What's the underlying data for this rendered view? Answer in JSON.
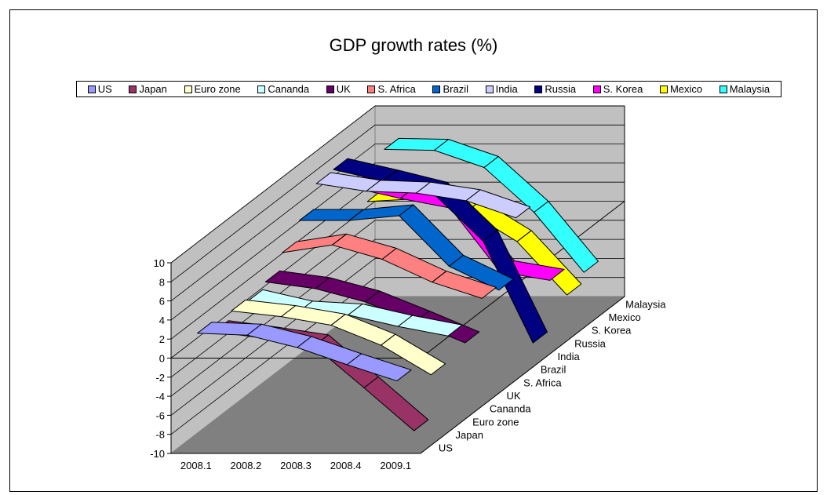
{
  "chart_data": {
    "type": "line",
    "subtype": "3d-line",
    "title": "GDP growth rates (%)",
    "categories": [
      "2008.1",
      "2008.2",
      "2008.3",
      "2008.4",
      "2009.1"
    ],
    "y_ticks": [
      "10",
      "8",
      "6",
      "4",
      "2",
      "0",
      "-2",
      "-4",
      "-6",
      "-8",
      "-10"
    ],
    "ylim": [
      -10,
      10
    ],
    "legend_position": "top",
    "grid": true,
    "series": [
      {
        "name": "US",
        "color": "#9999ff",
        "values": [
          2.5,
          2.3,
          1.0,
          -0.8,
          -2.5
        ]
      },
      {
        "name": "Japan",
        "color": "#993366",
        "values": [
          1.3,
          0.6,
          -0.2,
          -4.6,
          -9.1
        ]
      },
      {
        "name": "Euro zone",
        "color": "#ffffcc",
        "values": [
          2.1,
          1.5,
          0.6,
          -1.5,
          -4.6
        ]
      },
      {
        "name": "Cananda",
        "color": "#ccffff",
        "values": [
          1.8,
          0.6,
          0.3,
          -0.9,
          -1.9
        ]
      },
      {
        "name": "UK",
        "color": "#660066",
        "values": [
          2.4,
          1.7,
          0.3,
          -1.8,
          -4.0
        ]
      },
      {
        "name": "S. Africa",
        "color": "#ff8080",
        "values": [
          4.1,
          4.9,
          3.4,
          1.0,
          -0.7
        ]
      },
      {
        "name": "Brazil",
        "color": "#0066cc",
        "values": [
          6.1,
          6.1,
          6.6,
          1.3,
          -1.2
        ]
      },
      {
        "name": "India",
        "color": "#ccccff",
        "values": [
          8.6,
          7.8,
          7.6,
          6.8,
          5.0
        ]
      },
      {
        "name": "Russia",
        "color": "#000080",
        "values": [
          8.7,
          7.5,
          6.2,
          1.2,
          -9.5
        ]
      },
      {
        "name": "S. Korea",
        "color": "#ff00ff",
        "values": [
          5.5,
          4.3,
          3.3,
          -3.4,
          -4.3
        ]
      },
      {
        "name": "Mexico",
        "color": "#ffff00",
        "values": [
          2.6,
          2.9,
          1.6,
          -1.6,
          -7.2
        ]
      },
      {
        "name": "Malaysia",
        "color": "#33ffff",
        "values": [
          6.7,
          6.6,
          4.8,
          0.1,
          -6.2
        ]
      }
    ]
  }
}
